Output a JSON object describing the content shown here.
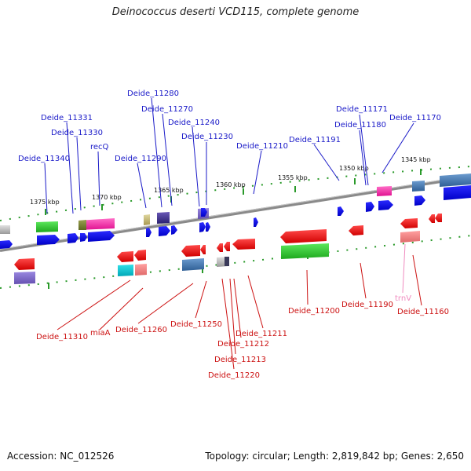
{
  "title": "Deinococcus deserti VCD115, complete genome",
  "footer": {
    "accession": "Accession: NC_012526",
    "summary": "Topology: circular; Length: 2,819,842 bp; Genes: 2,650"
  },
  "colors": {
    "top_strand_label": "#1a1ac8",
    "bottom_strand_label": "#cc1111",
    "trna_label": "#f08cc0",
    "backbone": "#808080"
  },
  "scale_labels": [
    "1375 kbp",
    "1370 kbp",
    "1365 kbp",
    "1360 kbp",
    "1355 kbp",
    "1350 kbp",
    "1345 kbp"
  ],
  "top_labels": [
    "Deide_11340",
    "Deide_11331",
    "Deide_11330",
    "recQ",
    "Deide_11290",
    "Deide_11280",
    "Deide_11270",
    "Deide_11240",
    "Deide_11230",
    "Deide_11210",
    "Deide_11191",
    "Deide_11171",
    "Deide_11180",
    "Deide_11170"
  ],
  "bottom_labels": [
    "Deide_11310",
    "miaA",
    "Deide_11260",
    "Deide_11250",
    "Deide_11200",
    "Deide_11190",
    "Deide_11160",
    "trnV",
    "Deide_11211",
    "Deide_11212",
    "Deide_11213",
    "Deide_11220"
  ]
}
